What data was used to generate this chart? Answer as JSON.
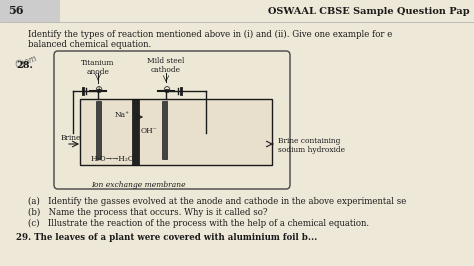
{
  "page_number": "56",
  "header": "OSWAAL CBSE Sample Question Pap",
  "bg_color": "#eee8d8",
  "text_color": "#1a1a1a",
  "intro_line1": "Identify the types of reaction mentioned above in (i) and (ii). Give one example for e",
  "intro_line2": "balanced chemical equation.",
  "handwritten": "Chem",
  "question_num": "28.",
  "diag_labels": {
    "titanium_anode": "Titanium\nanode",
    "mild_steel": "Mild steel\ncathode",
    "na_plus": "Na⁺",
    "oh_minus": "OH⁻",
    "brine_left": "Brine",
    "brine_right": "Brine containing\nsodium hydroxide",
    "h2o": "H₂O→→H₂O",
    "membrane": "Ion exchange membrane"
  },
  "sub_questions": [
    "(a)   Identify the gasses evolved at the anode and cathode in the above experimental se",
    "(b)   Name the process that occurs. Why is it called so?",
    "(c)   Illustrate the reaction of the process with the help of a chemical equation."
  ],
  "q29": "29. The leaves of a plant were covered with aluminium foil b..."
}
